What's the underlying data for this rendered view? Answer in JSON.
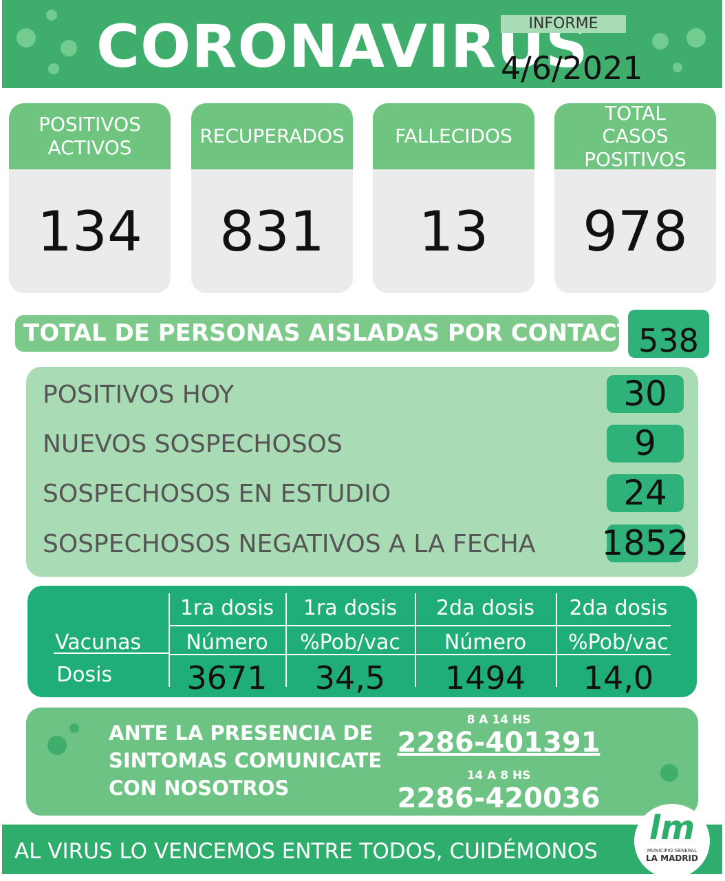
{
  "header": {
    "title": "CORONAVIRUS",
    "badge": "INFORME",
    "date": "4/6/2021"
  },
  "cards": [
    {
      "label": "POSITIVOS ACTIVOS",
      "value": 134
    },
    {
      "label": "RECUPERADOS",
      "value": 831
    },
    {
      "label": "FALLECIDOS",
      "value": 13
    },
    {
      "label": "TOTAL CASOS POSITIVOS",
      "value": 978
    }
  ],
  "isolated": {
    "label": "TOTAL DE PERSONAS AISLADAS POR CONTACTO",
    "value": 538
  },
  "stats": [
    {
      "label": "POSITIVOS HOY",
      "value": 30
    },
    {
      "label": "NUEVOS SOSPECHOSOS",
      "value": 9
    },
    {
      "label": "SOSPECHOSOS EN ESTUDIO",
      "value": 24
    },
    {
      "label": "SOSPECHOSOS NEGATIVOS A LA FECHA",
      "value": 1852
    }
  ],
  "vaccines": {
    "header_label": "Vacunas",
    "row_label": "Dosis",
    "columns": [
      {
        "dose": "1ra dosis",
        "measure": "Número",
        "value": "3671"
      },
      {
        "dose": "1ra dosis",
        "measure": "%Pob/vac",
        "value": "34,5"
      },
      {
        "dose": "2da dosis",
        "measure": "Número",
        "value": "1494"
      },
      {
        "dose": "2da dosis",
        "measure": "%Pob/vac",
        "value": "14,0"
      }
    ]
  },
  "contact": {
    "lines": [
      "ANTE LA PRESENCIA DE",
      "SINTOMAS COMUNICATE",
      "CON NOSOTROS"
    ],
    "phones": [
      {
        "hours": "8 A 14 HS",
        "number": "2286-401391"
      },
      {
        "hours": "14 A 8 HS",
        "number": "2286-420036"
      }
    ]
  },
  "footer": {
    "text": "AL VIRUS LO VENCEMOS ENTRE TODOS, CUIDÉMONOS",
    "logo": "lm",
    "logo_line1": "MUNICIPIO GENERAL",
    "logo_line2": "LA MADRID"
  }
}
